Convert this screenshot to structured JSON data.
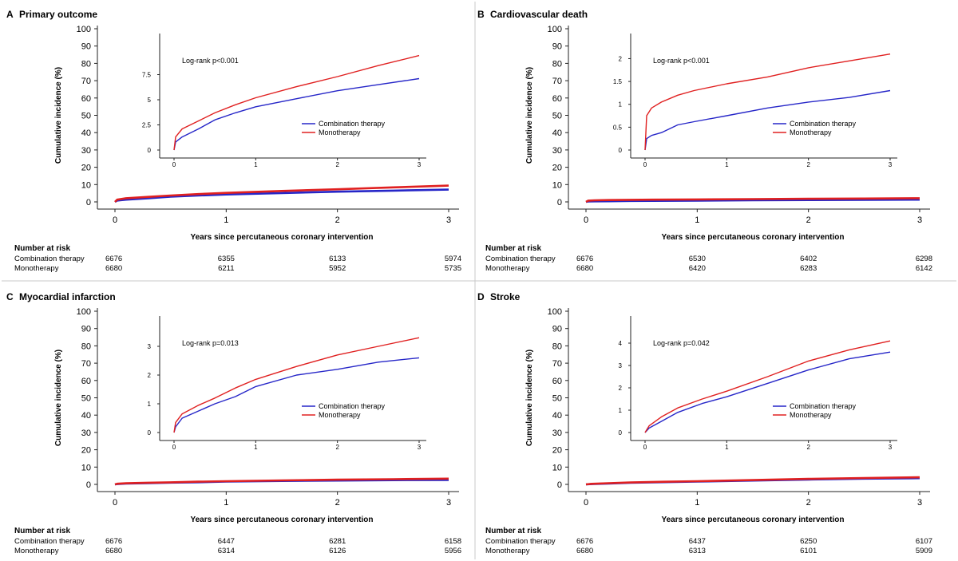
{
  "figure": {
    "x_axis_label": "Years since percutaneous coronary intervention",
    "y_axis_label": "Cumulative incidence (%)",
    "risk_header": "Number at risk",
    "series_colors": {
      "Combination therapy": "#2626c8",
      "Monotherapy": "#e02020"
    }
  },
  "chart_data": [
    {
      "panel": "A",
      "title": "Primary outcome",
      "type": "line",
      "xlim": [
        0,
        3
      ],
      "ylim": [
        0,
        100
      ],
      "x_ticks": [
        "0",
        "1",
        "2",
        "3"
      ],
      "y_ticks": [
        "0",
        "10",
        "20",
        "30",
        "40",
        "50",
        "60",
        "70",
        "80",
        "90",
        "100"
      ],
      "series": [
        {
          "name": "Combination therapy",
          "x": [
            0,
            0.02,
            0.1,
            0.3,
            0.5,
            0.75,
            1,
            1.5,
            2,
            2.5,
            3
          ],
          "y": [
            0,
            0.8,
            1.3,
            2.1,
            3.0,
            3.7,
            4.3,
            5.1,
            5.9,
            6.5,
            7.1
          ]
        },
        {
          "name": "Monotherapy",
          "x": [
            0,
            0.02,
            0.1,
            0.3,
            0.5,
            0.75,
            1,
            1.5,
            2,
            2.5,
            3
          ],
          "y": [
            0,
            1.3,
            2.1,
            2.9,
            3.7,
            4.5,
            5.2,
            6.3,
            7.3,
            8.4,
            9.4
          ]
        }
      ],
      "inset": {
        "ylim": [
          0,
          10
        ],
        "y_ticks": [
          "0",
          "2.5",
          "5",
          "7.5"
        ],
        "x_ticks": [
          "0",
          "1",
          "2",
          "3"
        ],
        "annotation": "Log-rank p<0.001",
        "legend": [
          "Combination therapy",
          "Monotherapy"
        ]
      },
      "number_at_risk": {
        "times": [
          0,
          1,
          2,
          3
        ],
        "rows": [
          {
            "label": "Combination therapy",
            "values": [
              "6676",
              "6355",
              "6133",
              "5974"
            ]
          },
          {
            "label": "Monotherapy",
            "values": [
              "6680",
              "6211",
              "5952",
              "5735"
            ]
          }
        ]
      }
    },
    {
      "panel": "B",
      "title": "Cardiovascular death",
      "type": "line",
      "xlim": [
        0,
        3
      ],
      "ylim": [
        0,
        100
      ],
      "x_ticks": [
        "0",
        "1",
        "2",
        "3"
      ],
      "y_ticks": [
        "0",
        "10",
        "20",
        "30",
        "40",
        "50",
        "60",
        "70",
        "80",
        "90",
        "100"
      ],
      "series": [
        {
          "name": "Combination therapy",
          "x": [
            0,
            0.02,
            0.08,
            0.2,
            0.4,
            0.6,
            1,
            1.5,
            2,
            2.5,
            3
          ],
          "y": [
            0,
            0.25,
            0.32,
            0.38,
            0.55,
            0.62,
            0.75,
            0.92,
            1.05,
            1.15,
            1.3
          ]
        },
        {
          "name": "Monotherapy",
          "x": [
            0,
            0.02,
            0.08,
            0.2,
            0.4,
            0.6,
            1,
            1.5,
            2,
            2.5,
            3
          ],
          "y": [
            0,
            0.75,
            0.92,
            1.05,
            1.2,
            1.3,
            1.45,
            1.6,
            1.8,
            1.95,
            2.1
          ]
        }
      ],
      "inset": {
        "ylim": [
          0,
          2.2
        ],
        "y_ticks": [
          "0",
          "0.5",
          "1",
          "1.5",
          "2"
        ],
        "x_ticks": [
          "0",
          "1",
          "2",
          "3"
        ],
        "annotation": "Log-rank p<0.001",
        "legend": [
          "Combination therapy",
          "Monotherapy"
        ]
      },
      "number_at_risk": {
        "times": [
          0,
          1,
          2,
          3
        ],
        "rows": [
          {
            "label": "Combination therapy",
            "values": [
              "6676",
              "6530",
              "6402",
              "6298"
            ]
          },
          {
            "label": "Monotherapy",
            "values": [
              "6680",
              "6420",
              "6283",
              "6142"
            ]
          }
        ]
      }
    },
    {
      "panel": "C",
      "title": "Myocardial infarction",
      "type": "line",
      "xlim": [
        0,
        3
      ],
      "ylim": [
        0,
        100
      ],
      "x_ticks": [
        "0",
        "1",
        "2",
        "3"
      ],
      "y_ticks": [
        "0",
        "10",
        "20",
        "30",
        "40",
        "50",
        "60",
        "70",
        "80",
        "90",
        "100"
      ],
      "series": [
        {
          "name": "Combination therapy",
          "x": [
            0,
            0.02,
            0.1,
            0.3,
            0.5,
            0.75,
            1,
            1.5,
            2,
            2.5,
            3
          ],
          "y": [
            0,
            0.2,
            0.5,
            0.75,
            1.0,
            1.25,
            1.6,
            2.0,
            2.2,
            2.45,
            2.6
          ]
        },
        {
          "name": "Monotherapy",
          "x": [
            0,
            0.02,
            0.1,
            0.3,
            0.5,
            0.75,
            1,
            1.5,
            2,
            2.5,
            3
          ],
          "y": [
            0,
            0.35,
            0.65,
            0.95,
            1.2,
            1.55,
            1.85,
            2.3,
            2.7,
            3.0,
            3.3
          ]
        }
      ],
      "inset": {
        "ylim": [
          0,
          3.5
        ],
        "y_ticks": [
          "0",
          "1",
          "2",
          "3"
        ],
        "x_ticks": [
          "0",
          "1",
          "2",
          "3"
        ],
        "annotation": "Log-rank p=0.013",
        "legend": [
          "Combination therapy",
          "Monotherapy"
        ]
      },
      "number_at_risk": {
        "times": [
          0,
          1,
          2,
          3
        ],
        "rows": [
          {
            "label": "Combination therapy",
            "values": [
              "6676",
              "6447",
              "6281",
              "6158"
            ]
          },
          {
            "label": "Monotherapy",
            "values": [
              "6680",
              "6314",
              "6126",
              "5956"
            ]
          }
        ]
      }
    },
    {
      "panel": "D",
      "title": "Stroke",
      "type": "line",
      "xlim": [
        0,
        3
      ],
      "ylim": [
        0,
        100
      ],
      "x_ticks": [
        "0",
        "1",
        "2",
        "3"
      ],
      "y_ticks": [
        "0",
        "10",
        "20",
        "30",
        "40",
        "50",
        "60",
        "70",
        "80",
        "90",
        "100"
      ],
      "series": [
        {
          "name": "Combination therapy",
          "x": [
            0,
            0.05,
            0.2,
            0.4,
            0.7,
            1,
            1.5,
            2,
            2.5,
            3
          ],
          "y": [
            0,
            0.2,
            0.5,
            0.9,
            1.3,
            1.6,
            2.2,
            2.8,
            3.3,
            3.6
          ]
        },
        {
          "name": "Monotherapy",
          "x": [
            0,
            0.05,
            0.2,
            0.4,
            0.7,
            1,
            1.5,
            2,
            2.5,
            3
          ],
          "y": [
            0,
            0.3,
            0.7,
            1.1,
            1.5,
            1.85,
            2.5,
            3.2,
            3.7,
            4.1
          ]
        }
      ],
      "inset": {
        "ylim": [
          0,
          4.5
        ],
        "y_ticks": [
          "0",
          "1",
          "2",
          "3",
          "4"
        ],
        "x_ticks": [
          "0",
          "1",
          "2",
          "3"
        ],
        "annotation": "Log-rank p=0.042",
        "legend": [
          "Combination therapy",
          "Monotherapy"
        ]
      },
      "number_at_risk": {
        "times": [
          0,
          1,
          2,
          3
        ],
        "rows": [
          {
            "label": "Combination therapy",
            "values": [
              "6676",
              "6437",
              "6250",
              "6107"
            ]
          },
          {
            "label": "Monotherapy",
            "values": [
              "6680",
              "6313",
              "6101",
              "5909"
            ]
          }
        ]
      }
    }
  ]
}
